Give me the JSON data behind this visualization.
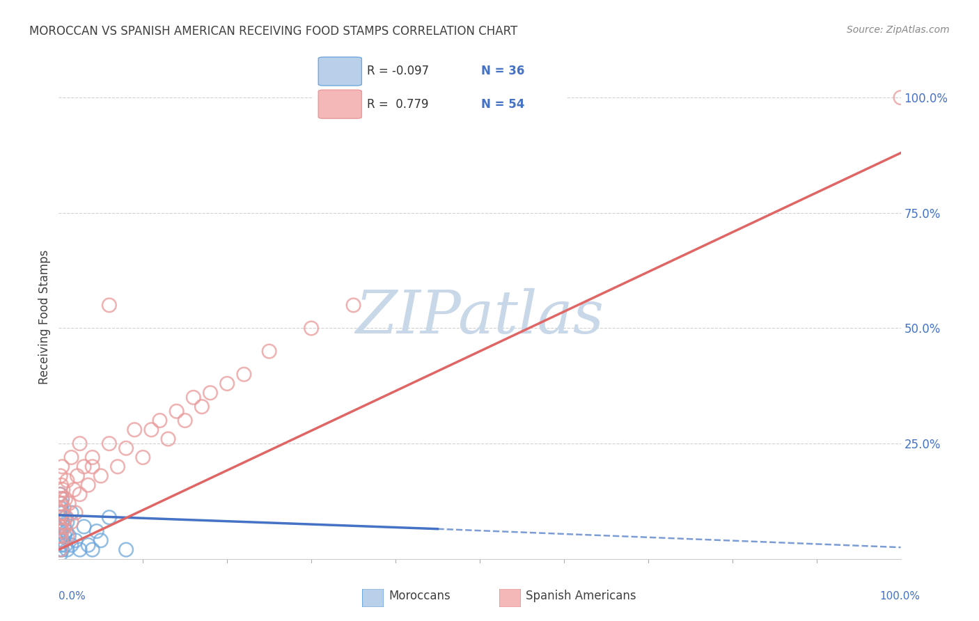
{
  "title": "MOROCCAN VS SPANISH AMERICAN RECEIVING FOOD STAMPS CORRELATION CHART",
  "source": "Source: ZipAtlas.com",
  "ylabel": "Receiving Food Stamps",
  "legend_moroccan": "Moroccans",
  "legend_spanish": "Spanish Americans",
  "moroccan_color": "#6fa8dc",
  "spanish_color": "#ea9999",
  "moroccan_line_color": "#4472c4",
  "spanish_line_color": "#e06666",
  "watermark_color": "#c8d8e8",
  "background_color": "#ffffff",
  "grid_color": "#cccccc",
  "title_color": "#404040",
  "source_color": "#888888",
  "axis_label_color": "#4472c4",
  "tick_color": "#888888",
  "moroccan_x": [
    0.001,
    0.001,
    0.001,
    0.002,
    0.002,
    0.002,
    0.002,
    0.002,
    0.003,
    0.003,
    0.003,
    0.003,
    0.004,
    0.004,
    0.004,
    0.005,
    0.005,
    0.006,
    0.007,
    0.008,
    0.008,
    0.009,
    0.01,
    0.01,
    0.012,
    0.015,
    0.015,
    0.02,
    0.025,
    0.03,
    0.035,
    0.04,
    0.045,
    0.05,
    0.06,
    0.08
  ],
  "moroccan_y": [
    0.02,
    0.06,
    0.1,
    0.01,
    0.04,
    0.07,
    0.11,
    0.14,
    0.03,
    0.06,
    0.09,
    0.12,
    0.02,
    0.08,
    0.13,
    0.04,
    0.1,
    0.07,
    0.05,
    0.03,
    0.09,
    0.06,
    0.02,
    0.08,
    0.05,
    0.03,
    0.1,
    0.04,
    0.02,
    0.07,
    0.03,
    0.02,
    0.06,
    0.04,
    0.09,
    0.02
  ],
  "spanish_x": [
    0.001,
    0.001,
    0.001,
    0.002,
    0.002,
    0.002,
    0.002,
    0.003,
    0.003,
    0.003,
    0.004,
    0.004,
    0.004,
    0.005,
    0.005,
    0.006,
    0.007,
    0.008,
    0.009,
    0.01,
    0.01,
    0.012,
    0.015,
    0.015,
    0.018,
    0.02,
    0.022,
    0.025,
    0.03,
    0.035,
    0.04,
    0.05,
    0.06,
    0.07,
    0.08,
    0.09,
    0.1,
    0.11,
    0.12,
    0.13,
    0.14,
    0.15,
    0.16,
    0.17,
    0.18,
    0.2,
    0.22,
    0.25,
    0.3,
    0.35,
    0.06,
    0.025,
    0.04,
    1.0
  ],
  "spanish_y": [
    0.05,
    0.09,
    0.14,
    0.02,
    0.07,
    0.12,
    0.18,
    0.04,
    0.1,
    0.16,
    0.06,
    0.13,
    0.2,
    0.08,
    0.15,
    0.11,
    0.07,
    0.13,
    0.09,
    0.05,
    0.17,
    0.12,
    0.08,
    0.22,
    0.15,
    0.1,
    0.18,
    0.14,
    0.2,
    0.16,
    0.22,
    0.18,
    0.25,
    0.2,
    0.24,
    0.28,
    0.22,
    0.28,
    0.3,
    0.26,
    0.32,
    0.3,
    0.35,
    0.33,
    0.36,
    0.38,
    0.4,
    0.45,
    0.5,
    0.55,
    0.55,
    0.25,
    0.2,
    1.0
  ],
  "moroccan_line_start_x": 0.0,
  "moroccan_line_start_y": 0.095,
  "moroccan_line_solid_end_x": 0.45,
  "moroccan_line_solid_end_y": 0.065,
  "moroccan_line_dash_end_x": 1.0,
  "moroccan_line_dash_end_y": 0.025,
  "spanish_line_start_x": 0.0,
  "spanish_line_start_y": 0.02,
  "spanish_line_end_x": 1.0,
  "spanish_line_end_y": 0.88,
  "xlim": [
    0.0,
    1.0
  ],
  "ylim": [
    0.0,
    1.05
  ],
  "yticks": [
    0.0,
    0.25,
    0.5,
    0.75,
    1.0
  ],
  "ytick_labels_right": [
    "",
    "25.0%",
    "50.0%",
    "75.0%",
    "100.0%"
  ]
}
